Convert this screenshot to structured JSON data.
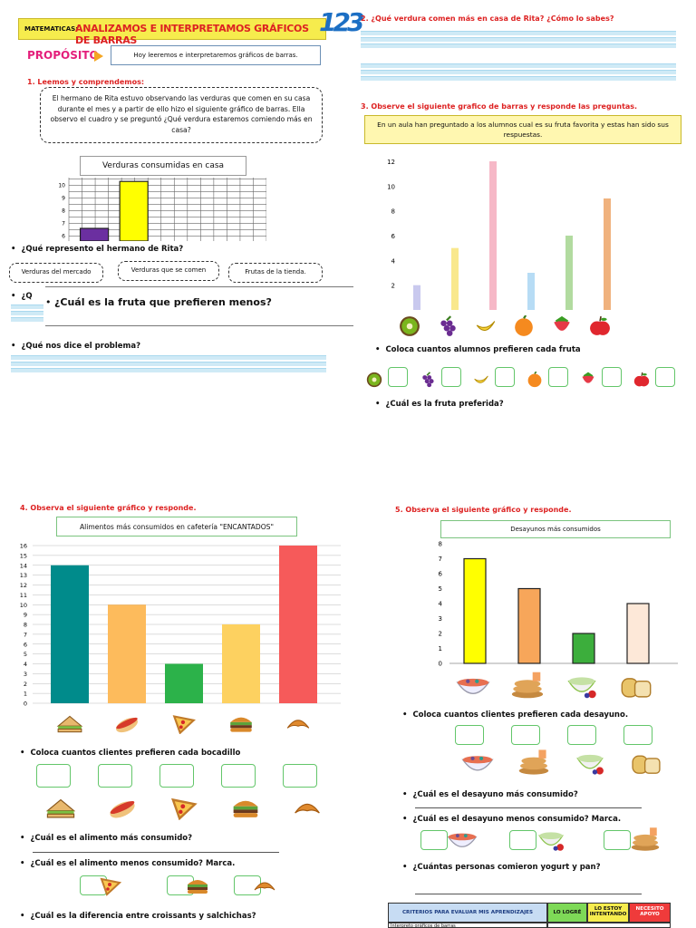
{
  "header": {
    "subject": "MATEMATICAS:",
    "title": "ANALIZAMOS E INTERPRETAMOS GRÁFICOS DE BARRAS",
    "logo": "123"
  },
  "purpose": {
    "label": "PROPÓSITO",
    "text": "Hoy leeremos e interpretaremos gráficos de barras."
  },
  "section1": {
    "heading": "1. Leemos y comprendemos:",
    "story": "El hermano de Rita estuvo observando las verduras que comen en su casa durante el mes y a partir de ello hizo el siguiente gráfico de barras. Ella observo el cuadro y se preguntó ¿Qué verdura estaremos comiendo más en casa?",
    "chart_title": "Verduras consumidas en casa",
    "q1": "¿Qué represento el hermano de Rita?",
    "options": [
      "Verduras del mercado",
      "Verduras que se comen",
      "Frutas de la tienda."
    ],
    "q_partial": "¿Q",
    "overlay_question": "¿Cuál es la fruta que prefieren menos?",
    "q3": "¿Qué nos dice el problema?"
  },
  "section2": {
    "heading": "2. ¿Qué verdura comen más en casa de Rita? ¿Cómo lo sabes?"
  },
  "section3": {
    "heading": "3. Observe el siguiente grafico de barras y responde las preguntas.",
    "intro": "En un aula han preguntado a los alumnos cual es su fruta favorita y estas han sido sus respuestas.",
    "q1": "Coloca cuantos alumnos prefieren cada fruta",
    "q2": "¿Cuál es la fruta preferida?"
  },
  "section4": {
    "heading": "4. Observa el siguiente gráfico y responde.",
    "chart_title": "Alimentos más consumidos en cafetería \"ENCANTADOS\"",
    "q1": "Coloca cuantos clientes prefieren cada bocadillo",
    "q2": "¿Cuál es el alimento más consumido?",
    "q3": "¿Cuál es el alimento menos consumido? Marca.",
    "q4": "¿Cuál es la diferencia entre croissants y salchichas?"
  },
  "section5": {
    "heading": "5. Observa el siguiente gráfico y responde.",
    "chart_title": "Desayunos más consumidos",
    "q1": "Coloca cuantos clientes prefieren cada desayuno.",
    "q2": "¿Cuál es el desayuno más consumido?",
    "q3": "¿Cuál es el desayuno menos consumido? Marca.",
    "q4": "¿Cuántas personas comieron yogurt y pan?"
  },
  "criteria": {
    "header": "CRITERIOS PARA EVALUAR MIS APRENDIZAJES",
    "col1": "LO LOGRÉ",
    "col2": "LO ESTOY INTENTANDO",
    "col3": "NECESITO APOYO",
    "row1": "Interpreto gráficos de barras"
  },
  "colors": {
    "title_red": "#d22222",
    "answer_green": "#63c66a",
    "teal": "#008b8b"
  },
  "chart_data": [
    {
      "type": "bar",
      "title": "Verduras consumidas en casa",
      "y_ticks": [
        6,
        7,
        8,
        9,
        10
      ],
      "ylim": [
        6,
        10
      ],
      "grid": true,
      "series": [
        {
          "values": [
            6.6,
            10.3
          ],
          "colors": [
            "#6b2fa0",
            "#ffff00"
          ]
        }
      ]
    },
    {
      "type": "bar",
      "categories": [
        "kiwi-icon",
        "grapes-icon",
        "banana-icon",
        "orange-icon",
        "strawberry-icon",
        "apple-icon"
      ],
      "values": [
        2,
        5,
        12,
        3,
        6,
        9
      ],
      "y_ticks": [
        2,
        4,
        6,
        8,
        10,
        12
      ],
      "ylim": [
        0,
        12
      ],
      "colors": [
        "#c9c9ee",
        "#f9e88d",
        "#f6b8c7",
        "#b7dcf5",
        "#b2dba0",
        "#f0b27e"
      ]
    },
    {
      "type": "bar",
      "title": "Alimentos más consumidos en cafetería \"ENCANTADOS\"",
      "categories": [
        "sandwich-icon",
        "hotdog-icon",
        "pizza-icon",
        "burger-icon",
        "croissant-icon"
      ],
      "values": [
        14,
        10,
        4,
        8,
        16
      ],
      "y_ticks": [
        0,
        1,
        2,
        3,
        4,
        5,
        6,
        7,
        8,
        9,
        10,
        11,
        12,
        13,
        14,
        15,
        16
      ],
      "ylim": [
        0,
        16
      ],
      "grid": true,
      "colors": [
        "#008b8b",
        "#fdbb5c",
        "#2cb24a",
        "#fdd160",
        "#f65a5a"
      ]
    },
    {
      "type": "bar",
      "title": "Desayunos más consumidos",
      "categories": [
        "cereal-icon",
        "pancakes-icon",
        "yogurt-icon",
        "bread-icon"
      ],
      "values": [
        7,
        5,
        2,
        4
      ],
      "y_ticks": [
        0,
        1,
        2,
        3,
        4,
        5,
        6,
        7,
        8
      ],
      "ylim": [
        0,
        8
      ],
      "colors": [
        "#ffff00",
        "#f7a65a",
        "#3cae3c",
        "#fde8d8"
      ]
    }
  ]
}
